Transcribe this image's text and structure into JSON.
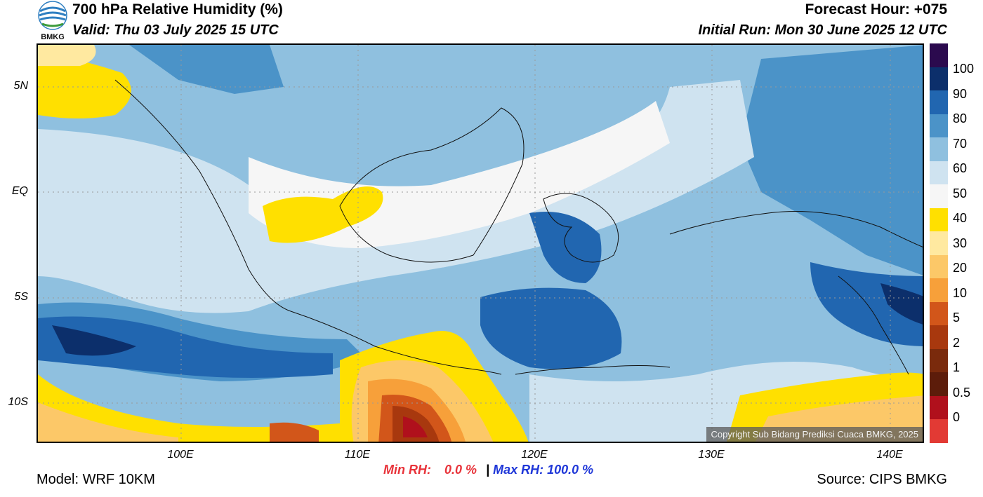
{
  "header": {
    "title": "700 hPa Relative Humidity (%)",
    "valid": "Valid: Thu 03 July 2025 15 UTC",
    "forecast_hour": "Forecast Hour: +075",
    "initial_run": "Initial Run: Mon 30 June 2025 12 UTC",
    "logo_text": "BMKG"
  },
  "map": {
    "lat_labels": [
      "5N",
      "EQ",
      "5S",
      "10S"
    ],
    "lon_labels": [
      "100E",
      "110E",
      "120E",
      "130E",
      "140E"
    ],
    "copyright": "Copyright Sub Bidang Prediksi Cuaca BMKG, 2025"
  },
  "colorbar": {
    "labels": [
      "100",
      "90",
      "80",
      "70",
      "60",
      "50",
      "40",
      "30",
      "20",
      "10",
      "5",
      "2",
      "1",
      "0.5",
      "0"
    ],
    "colors": [
      "#2b0a4e",
      "#0c2f6b",
      "#2166b0",
      "#4b93c8",
      "#8fc0df",
      "#cfe3f0",
      "#f6f6f6",
      "#ffe000",
      "#ffe9a0",
      "#fcc868",
      "#f7a03a",
      "#d2561a",
      "#a8380e",
      "#7a2a0c",
      "#5c1c0a",
      "#b0101c",
      "#e23a34"
    ]
  },
  "stats": {
    "min_label": "Min RH:",
    "min_value": "0.0 %",
    "separator": "|",
    "max_label": "Max RH:",
    "max_value": "100.0 %",
    "min_color": "#e8333a",
    "max_color": "#1f37d8"
  },
  "footer": {
    "model": "Model: WRF 10KM",
    "source": "Source: CIPS BMKG"
  }
}
